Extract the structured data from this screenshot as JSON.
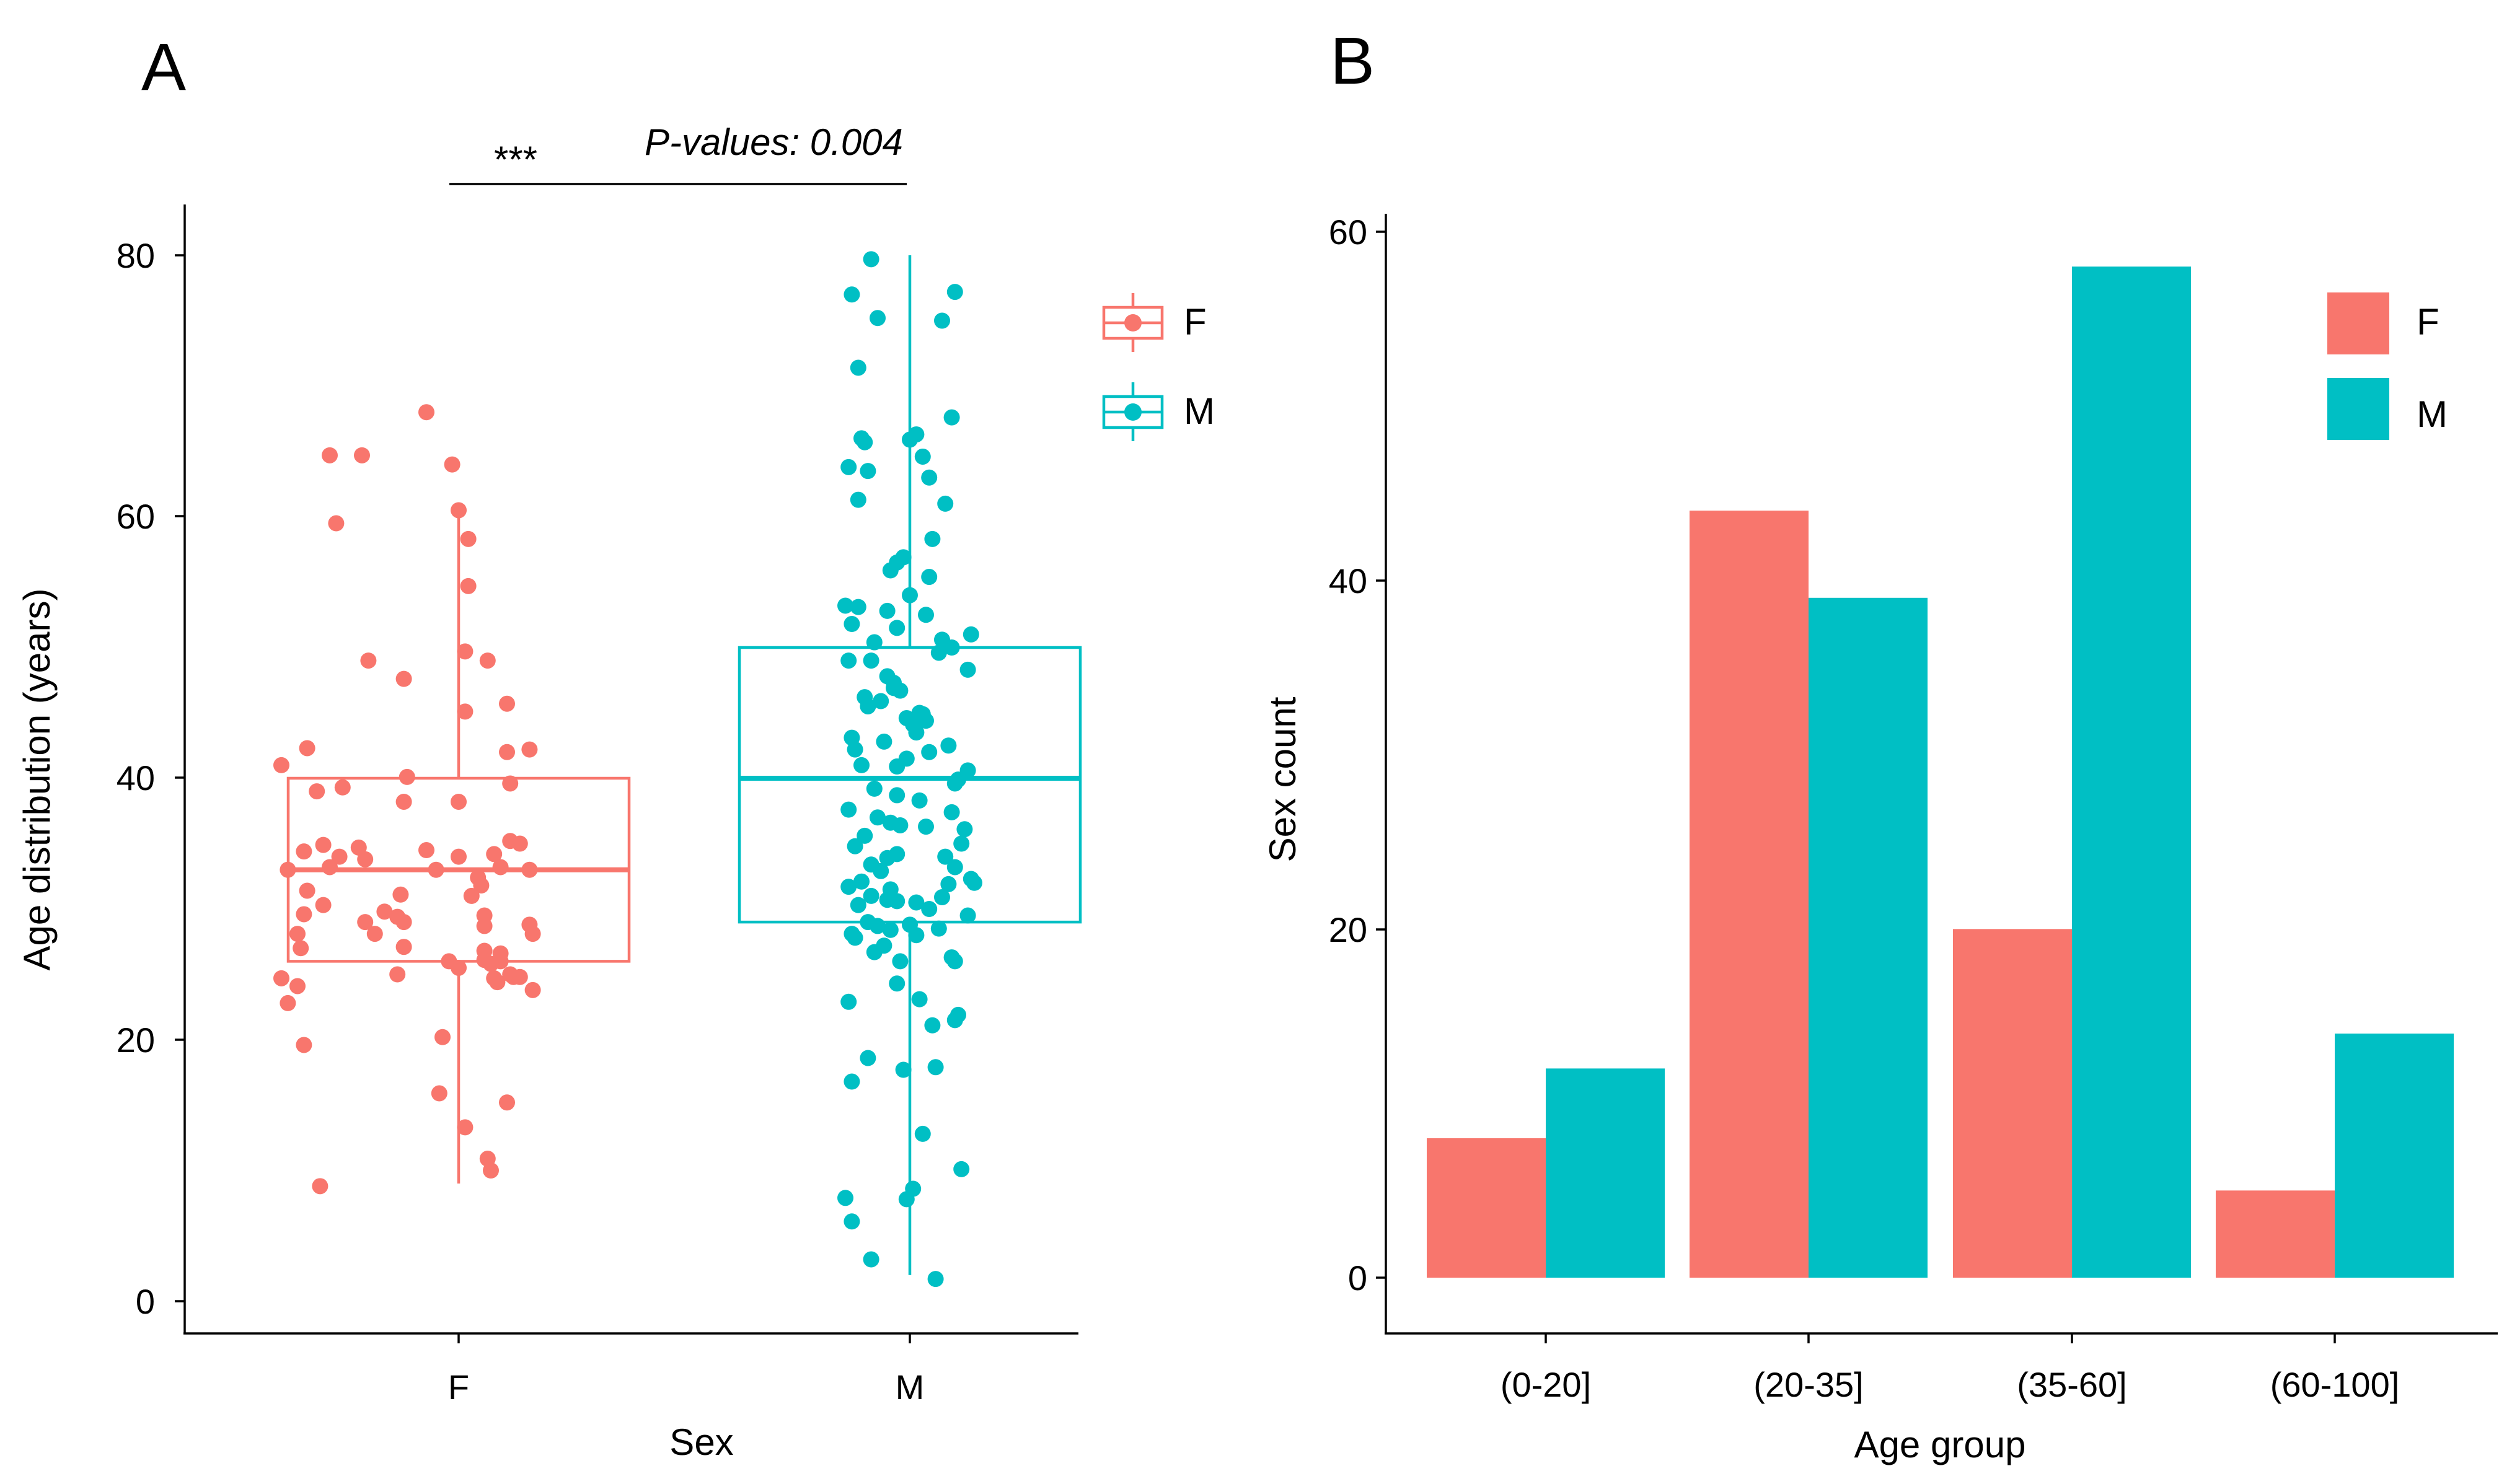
{
  "chart_data": [
    {
      "panel": "A",
      "type": "box",
      "xlabel": "Sex",
      "ylabel": "Age distribution (years)",
      "ylim": [
        0,
        80
      ],
      "yticks": [
        "0",
        "20",
        "40",
        "60",
        "80"
      ],
      "categories": [
        "F",
        "M"
      ],
      "legend": {
        "position": "top-right",
        "entries": [
          "F",
          "M"
        ]
      },
      "annotation": {
        "stars": "***",
        "text": "P-values: 0.004"
      },
      "colors": {
        "F": "#F8766D",
        "M": "#00BFC4"
      },
      "boxes": [
        {
          "name": "F",
          "whisker_low": 9,
          "q1": 26,
          "median": 33,
          "q3": 40,
          "whisker_high": 60,
          "points": [
            {
              "j": -0.1,
              "y": 68
            },
            {
              "j": -0.4,
              "y": 64.7
            },
            {
              "j": -0.3,
              "y": 64.7
            },
            {
              "j": -0.02,
              "y": 64
            },
            {
              "j": 0.0,
              "y": 60.5
            },
            {
              "j": -0.38,
              "y": 59.5
            },
            {
              "j": 0.03,
              "y": 58.3
            },
            {
              "j": 0.03,
              "y": 54.7
            },
            {
              "j": 0.02,
              "y": 49.7
            },
            {
              "j": -0.28,
              "y": 49
            },
            {
              "j": 0.09,
              "y": 49
            },
            {
              "j": -0.17,
              "y": 47.6
            },
            {
              "j": 0.15,
              "y": 45.7
            },
            {
              "j": 0.02,
              "y": 45.1
            },
            {
              "j": -0.47,
              "y": 42.3
            },
            {
              "j": 0.15,
              "y": 42
            },
            {
              "j": 0.22,
              "y": 42.2
            },
            {
              "j": -0.55,
              "y": 41
            },
            {
              "j": -0.16,
              "y": 40.1
            },
            {
              "j": 0.16,
              "y": 39.6
            },
            {
              "j": -0.36,
              "y": 39.3
            },
            {
              "j": -0.44,
              "y": 39
            },
            {
              "j": 0.0,
              "y": 38.2
            },
            {
              "j": -0.17,
              "y": 38.2
            },
            {
              "j": 0.16,
              "y": 35.2
            },
            {
              "j": -0.31,
              "y": 34.7
            },
            {
              "j": -0.42,
              "y": 34.9
            },
            {
              "j": -0.1,
              "y": 34.5
            },
            {
              "j": 0.19,
              "y": 35
            },
            {
              "j": -0.48,
              "y": 34.4
            },
            {
              "j": -0.37,
              "y": 34
            },
            {
              "j": -0.29,
              "y": 33.8
            },
            {
              "j": 0.0,
              "y": 34
            },
            {
              "j": 0.11,
              "y": 34.2
            },
            {
              "j": -0.53,
              "y": 33
            },
            {
              "j": -0.4,
              "y": 33.2
            },
            {
              "j": -0.07,
              "y": 33
            },
            {
              "j": 0.13,
              "y": 33.2
            },
            {
              "j": 0.22,
              "y": 33
            },
            {
              "j": 0.06,
              "y": 32.4
            },
            {
              "j": 0.07,
              "y": 31.8
            },
            {
              "j": -0.47,
              "y": 31.4
            },
            {
              "j": -0.18,
              "y": 31.1
            },
            {
              "j": 0.04,
              "y": 31
            },
            {
              "j": -0.42,
              "y": 30.3
            },
            {
              "j": -0.23,
              "y": 29.8
            },
            {
              "j": -0.48,
              "y": 29.6
            },
            {
              "j": 0.08,
              "y": 29.5
            },
            {
              "j": -0.19,
              "y": 29.4
            },
            {
              "j": -0.17,
              "y": 29
            },
            {
              "j": -0.29,
              "y": 29
            },
            {
              "j": 0.22,
              "y": 28.8
            },
            {
              "j": 0.08,
              "y": 28.7
            },
            {
              "j": -0.5,
              "y": 28.1
            },
            {
              "j": -0.26,
              "y": 28.1
            },
            {
              "j": 0.23,
              "y": 28.1
            },
            {
              "j": -0.17,
              "y": 27.1
            },
            {
              "j": -0.49,
              "y": 27
            },
            {
              "j": 0.08,
              "y": 26.8
            },
            {
              "j": 0.13,
              "y": 26.6
            },
            {
              "j": 0.08,
              "y": 26.1
            },
            {
              "j": 0.13,
              "y": 26
            },
            {
              "j": -0.03,
              "y": 26
            },
            {
              "j": 0.1,
              "y": 25.8
            },
            {
              "j": 0.0,
              "y": 25.5
            },
            {
              "j": -0.19,
              "y": 25
            },
            {
              "j": 0.16,
              "y": 25
            },
            {
              "j": 0.17,
              "y": 24.8
            },
            {
              "j": 0.19,
              "y": 24.8
            },
            {
              "j": 0.11,
              "y": 24.7
            },
            {
              "j": 0.12,
              "y": 24.4
            },
            {
              "j": -0.55,
              "y": 24.7
            },
            {
              "j": -0.5,
              "y": 24.1
            },
            {
              "j": 0.23,
              "y": 23.8
            },
            {
              "j": -0.53,
              "y": 22.8
            },
            {
              "j": -0.48,
              "y": 19.6
            },
            {
              "j": -0.05,
              "y": 20.2
            },
            {
              "j": -0.06,
              "y": 15.9
            },
            {
              "j": 0.15,
              "y": 15.2
            },
            {
              "j": 0.02,
              "y": 13.3
            },
            {
              "j": 0.09,
              "y": 10.9
            },
            {
              "j": 0.1,
              "y": 10
            },
            {
              "j": -0.43,
              "y": 8.8
            }
          ]
        },
        {
          "name": "M",
          "whisker_low": 2,
          "q1": 29,
          "median": 40,
          "q3": 50,
          "whisker_high": 80,
          "points": [
            {
              "j": -0.12,
              "y": 79.7
            },
            {
              "j": 0.14,
              "y": 77.2
            },
            {
              "j": -0.18,
              "y": 77
            },
            {
              "j": -0.1,
              "y": 75.2
            },
            {
              "j": 0.1,
              "y": 75
            },
            {
              "j": -0.16,
              "y": 71.4
            },
            {
              "j": 0.13,
              "y": 67.6
            },
            {
              "j": -0.15,
              "y": 66
            },
            {
              "j": 0.02,
              "y": 66.3
            },
            {
              "j": 0.0,
              "y": 65.9
            },
            {
              "j": -0.14,
              "y": 65.7
            },
            {
              "j": 0.04,
              "y": 64.6
            },
            {
              "j": -0.19,
              "y": 63.8
            },
            {
              "j": -0.13,
              "y": 63.5
            },
            {
              "j": 0.06,
              "y": 63
            },
            {
              "j": -0.16,
              "y": 61.3
            },
            {
              "j": 0.11,
              "y": 61
            },
            {
              "j": 0.07,
              "y": 58.3
            },
            {
              "j": -0.02,
              "y": 56.9
            },
            {
              "j": -0.04,
              "y": 56.5
            },
            {
              "j": -0.06,
              "y": 55.9
            },
            {
              "j": 0.06,
              "y": 55.4
            },
            {
              "j": 0.0,
              "y": 54
            },
            {
              "j": -0.16,
              "y": 53.1
            },
            {
              "j": -0.2,
              "y": 53.2
            },
            {
              "j": 0.05,
              "y": 52.5
            },
            {
              "j": -0.07,
              "y": 52.8
            },
            {
              "j": -0.18,
              "y": 51.8
            },
            {
              "j": -0.04,
              "y": 51.5
            },
            {
              "j": 0.19,
              "y": 51
            },
            {
              "j": 0.1,
              "y": 50.6
            },
            {
              "j": -0.11,
              "y": 50.4
            },
            {
              "j": 0.13,
              "y": 50
            },
            {
              "j": 0.09,
              "y": 49.6
            },
            {
              "j": -0.19,
              "y": 49
            },
            {
              "j": -0.12,
              "y": 49
            },
            {
              "j": 0.18,
              "y": 48.3
            },
            {
              "j": -0.07,
              "y": 47.8
            },
            {
              "j": -0.05,
              "y": 47.3
            },
            {
              "j": -0.05,
              "y": 46.9
            },
            {
              "j": -0.03,
              "y": 46.7
            },
            {
              "j": -0.14,
              "y": 46.2
            },
            {
              "j": -0.09,
              "y": 45.9
            },
            {
              "j": -0.13,
              "y": 45.5
            },
            {
              "j": 0.03,
              "y": 45
            },
            {
              "j": 0.04,
              "y": 44.9
            },
            {
              "j": -0.01,
              "y": 44.6
            },
            {
              "j": 0.05,
              "y": 44.4
            },
            {
              "j": 0.01,
              "y": 44.1
            },
            {
              "j": 0.02,
              "y": 43.5
            },
            {
              "j": -0.18,
              "y": 43.1
            },
            {
              "j": -0.08,
              "y": 42.8
            },
            {
              "j": 0.12,
              "y": 42.5
            },
            {
              "j": -0.17,
              "y": 42.2
            },
            {
              "j": 0.06,
              "y": 42
            },
            {
              "j": -0.01,
              "y": 41.5
            },
            {
              "j": 0.18,
              "y": 40.6
            },
            {
              "j": -0.15,
              "y": 41
            },
            {
              "j": -0.04,
              "y": 40.9
            },
            {
              "j": 0.15,
              "y": 39.9
            },
            {
              "j": 0.14,
              "y": 39.6
            },
            {
              "j": -0.11,
              "y": 39.2
            },
            {
              "j": -0.04,
              "y": 38.7
            },
            {
              "j": 0.03,
              "y": 38.3
            },
            {
              "j": -0.19,
              "y": 37.6
            },
            {
              "j": -0.1,
              "y": 37
            },
            {
              "j": 0.13,
              "y": 37.4
            },
            {
              "j": -0.06,
              "y": 36.6
            },
            {
              "j": -0.03,
              "y": 36.4
            },
            {
              "j": 0.05,
              "y": 36.3
            },
            {
              "j": 0.17,
              "y": 36.1
            },
            {
              "j": -0.14,
              "y": 35.6
            },
            {
              "j": 0.16,
              "y": 35
            },
            {
              "j": -0.17,
              "y": 34.8
            },
            {
              "j": -0.04,
              "y": 34.2
            },
            {
              "j": 0.11,
              "y": 34
            },
            {
              "j": -0.07,
              "y": 33.9
            },
            {
              "j": -0.12,
              "y": 33.4
            },
            {
              "j": 0.14,
              "y": 33.2
            },
            {
              "j": -0.09,
              "y": 32.9
            },
            {
              "j": 0.19,
              "y": 32.3
            },
            {
              "j": -0.15,
              "y": 32.1
            },
            {
              "j": 0.12,
              "y": 31.9
            },
            {
              "j": 0.2,
              "y": 32
            },
            {
              "j": -0.19,
              "y": 31.7
            },
            {
              "j": -0.06,
              "y": 31.5
            },
            {
              "j": -0.12,
              "y": 31
            },
            {
              "j": 0.1,
              "y": 30.9
            },
            {
              "j": -0.07,
              "y": 30.7
            },
            {
              "j": 0.02,
              "y": 30.5
            },
            {
              "j": -0.04,
              "y": 30.6
            },
            {
              "j": -0.16,
              "y": 30.3
            },
            {
              "j": 0.06,
              "y": 30
            },
            {
              "j": 0.18,
              "y": 29.5
            },
            {
              "j": -0.13,
              "y": 29
            },
            {
              "j": 0.0,
              "y": 28.8
            },
            {
              "j": -0.1,
              "y": 28.7
            },
            {
              "j": 0.09,
              "y": 28.5
            },
            {
              "j": -0.06,
              "y": 28.4
            },
            {
              "j": -0.18,
              "y": 28.1
            },
            {
              "j": 0.02,
              "y": 28
            },
            {
              "j": -0.17,
              "y": 27.8
            },
            {
              "j": -0.08,
              "y": 27.2
            },
            {
              "j": -0.11,
              "y": 26.7
            },
            {
              "j": 0.13,
              "y": 26.3
            },
            {
              "j": 0.14,
              "y": 26
            },
            {
              "j": -0.03,
              "y": 26
            },
            {
              "j": -0.04,
              "y": 24.3
            },
            {
              "j": 0.03,
              "y": 23.1
            },
            {
              "j": -0.19,
              "y": 22.9
            },
            {
              "j": 0.15,
              "y": 21.9
            },
            {
              "j": 0.14,
              "y": 21.5
            },
            {
              "j": 0.07,
              "y": 21.1
            },
            {
              "j": -0.13,
              "y": 18.6
            },
            {
              "j": 0.08,
              "y": 17.9
            },
            {
              "j": -0.02,
              "y": 17.7
            },
            {
              "j": -0.18,
              "y": 16.8
            },
            {
              "j": 0.04,
              "y": 12.8
            },
            {
              "j": 0.16,
              "y": 10.1
            },
            {
              "j": 0.01,
              "y": 8.6
            },
            {
              "j": -0.2,
              "y": 7.9
            },
            {
              "j": -0.01,
              "y": 7.8
            },
            {
              "j": -0.18,
              "y": 6.1
            },
            {
              "j": -0.12,
              "y": 3.2
            },
            {
              "j": 0.08,
              "y": 1.7
            }
          ]
        }
      ]
    },
    {
      "panel": "B",
      "type": "bar",
      "xlabel": "Age group",
      "ylabel": "Sex count",
      "ylim": [
        0,
        60
      ],
      "yticks": [
        "0",
        "20",
        "40",
        "60"
      ],
      "categories": [
        "(0-20]",
        "(20-35]",
        "(35-60]",
        "(60-100]"
      ],
      "legend": {
        "position": "top-right",
        "entries": [
          "F",
          "M"
        ]
      },
      "series": [
        {
          "name": "F",
          "color": "#F8766D",
          "values": [
            8,
            44,
            20,
            5
          ]
        },
        {
          "name": "M",
          "color": "#00BFC4",
          "values": [
            12,
            39,
            58,
            14
          ]
        }
      ]
    }
  ]
}
